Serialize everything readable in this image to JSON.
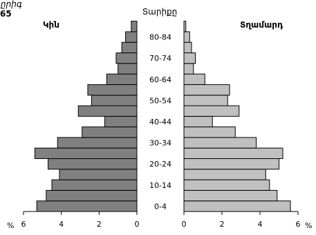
{
  "chart_data": {
    "type": "bar",
    "orientation": "horizontal-population-pyramid",
    "top_partial_text": "ըրիգ",
    "top_partial_number": "65",
    "center_label": "Տարիքը",
    "left_label": "Կին",
    "right_label": "Տղամարդ",
    "unit_label": "%",
    "age_labels": [
      "80-84",
      "70-74",
      "60-64",
      "50-54",
      "40-44",
      "30-34",
      "20-24",
      "10-14",
      "0-4"
    ],
    "x_ticks_left": [
      "6",
      "4",
      "2",
      "0"
    ],
    "x_ticks_right": [
      "0",
      "2",
      "4",
      "6"
    ],
    "xlim": [
      0,
      6
    ],
    "groups_bottom_to_top": [
      "0-4",
      "5-9",
      "10-14",
      "15-19",
      "20-24",
      "25-29",
      "30-34",
      "35-39",
      "40-44",
      "45-49",
      "50-54",
      "55-59",
      "60-64",
      "65-69",
      "70-74",
      "75-79",
      "80-84",
      "85+"
    ],
    "series": [
      {
        "name": "Կին",
        "values": [
          5.3,
          4.8,
          4.5,
          4.1,
          4.7,
          5.4,
          4.2,
          2.9,
          1.7,
          3.1,
          2.4,
          2.6,
          1.6,
          1.0,
          1.1,
          0.8,
          0.6,
          0.3
        ]
      },
      {
        "name": "Տղամարդ",
        "values": [
          5.6,
          4.9,
          4.5,
          4.3,
          5.0,
          5.2,
          3.8,
          2.7,
          1.5,
          2.9,
          2.3,
          2.4,
          1.1,
          0.5,
          0.6,
          0.4,
          0.3,
          0.1
        ]
      }
    ],
    "colors": {
      "female": "#808080",
      "male": "#c0c0c0"
    }
  }
}
